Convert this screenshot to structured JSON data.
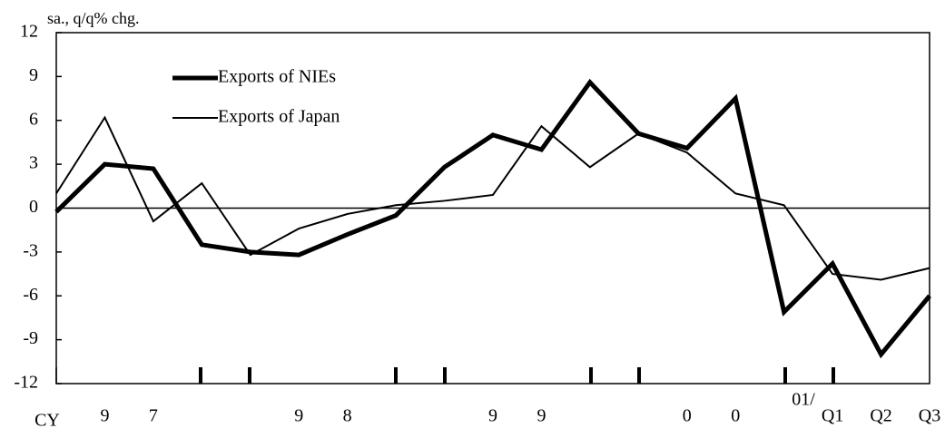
{
  "chart_data": {
    "type": "line",
    "y_axis_label": "sa., q/q% chg.",
    "categories": [
      "CY",
      "9",
      "7",
      null,
      null,
      "9",
      "8",
      null,
      null,
      "9",
      "9",
      null,
      null,
      "0",
      "0",
      null,
      "Q1",
      "Q2",
      "Q3"
    ],
    "annotation": "01/",
    "series": [
      {
        "name": "Exports of NIEs",
        "color": "#000000",
        "width": 5,
        "values": [
          -0.25,
          3.0,
          2.7,
          -2.5,
          -3.0,
          -3.2,
          -1.8,
          -0.5,
          2.8,
          5.0,
          4.0,
          8.6,
          5.1,
          4.1,
          7.5,
          -7.1,
          -3.8,
          -10.0,
          -6.0
        ]
      },
      {
        "name": "Exports of Japan",
        "color": "#000000",
        "width": 2,
        "values": [
          1.0,
          6.2,
          -0.9,
          1.7,
          -3.2,
          -1.4,
          -0.4,
          0.2,
          0.5,
          0.9,
          5.6,
          2.8,
          5.1,
          3.8,
          1.0,
          0.2,
          -4.5,
          -4.9,
          -4.1
        ]
      }
    ],
    "ylim": [
      -12,
      12
    ],
    "yticks": [
      12,
      9,
      6,
      3,
      0,
      -3,
      -6,
      -9,
      -12
    ],
    "zero_line": true
  }
}
